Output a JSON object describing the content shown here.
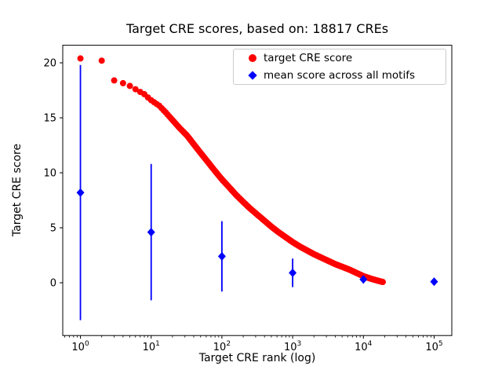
{
  "figure": {
    "title": "Target CRE scores, based on: 18817 CREs",
    "xlabel": "Target CRE rank (log)",
    "ylabel": "Target CRE score"
  },
  "chart_data": {
    "type": "scatter",
    "title": "Target CRE scores, based on: 18817 CREs",
    "xlabel": "Target CRE rank (log)",
    "ylabel": "Target CRE score",
    "x_scale": "log10",
    "xlim_log10": [
      -0.25,
      5.25
    ],
    "ylim": [
      -4.8,
      21.6
    ],
    "xtick_exponents": [
      0,
      1,
      2,
      3,
      4,
      5
    ],
    "yticks": [
      0,
      5,
      10,
      15,
      20
    ],
    "legend_position": "upper right",
    "grid": false,
    "series": [
      {
        "name": "target CRE score",
        "marker": "circle",
        "color": "#ff0000",
        "points": [
          [
            1,
            20.4
          ],
          [
            2,
            20.2
          ],
          [
            3,
            18.4
          ],
          [
            4,
            18.15
          ],
          [
            5,
            17.9
          ],
          [
            6,
            17.6
          ],
          [
            7,
            17.35
          ],
          [
            8,
            17.15
          ],
          [
            9,
            16.85
          ],
          [
            10,
            16.6
          ],
          [
            13,
            16.1
          ],
          [
            16,
            15.5
          ],
          [
            20,
            14.8
          ],
          [
            25,
            14.1
          ],
          [
            32,
            13.4
          ],
          [
            40,
            12.6
          ],
          [
            50,
            11.8
          ],
          [
            63,
            11.0
          ],
          [
            79,
            10.2
          ],
          [
            100,
            9.4
          ],
          [
            126,
            8.7
          ],
          [
            158,
            8.0
          ],
          [
            200,
            7.35
          ],
          [
            251,
            6.75
          ],
          [
            316,
            6.2
          ],
          [
            398,
            5.65
          ],
          [
            501,
            5.1
          ],
          [
            631,
            4.6
          ],
          [
            794,
            4.15
          ],
          [
            1000,
            3.7
          ],
          [
            1259,
            3.3
          ],
          [
            1585,
            2.95
          ],
          [
            1995,
            2.6
          ],
          [
            2512,
            2.3
          ],
          [
            3162,
            2.0
          ],
          [
            3981,
            1.7
          ],
          [
            5012,
            1.45
          ],
          [
            6310,
            1.2
          ],
          [
            7943,
            0.9
          ],
          [
            10000,
            0.6
          ],
          [
            12589,
            0.38
          ],
          [
            14791,
            0.25
          ],
          [
            16982,
            0.14
          ],
          [
            18817,
            0.07
          ]
        ],
        "rank_range": [
          1,
          18817
        ]
      },
      {
        "name": "mean score across all motifs",
        "marker": "diamond",
        "color": "#0000ff",
        "x": [
          1,
          10,
          100,
          1000,
          10000,
          100000
        ],
        "y": [
          8.2,
          4.6,
          2.4,
          0.9,
          0.3,
          0.1
        ],
        "yerr": [
          11.6,
          6.2,
          3.2,
          1.3,
          0.35,
          0.12
        ]
      }
    ]
  }
}
